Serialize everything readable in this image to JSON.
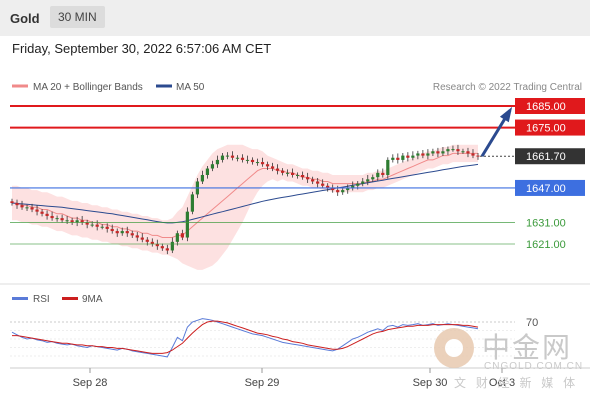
{
  "header": {
    "asset": "Gold",
    "timeframe": "30 MIN",
    "datetime": "Friday, September 30, 2022 6:57:06 AM CET"
  },
  "legend": {
    "ma20": "MA 20 + Bollinger Bands",
    "ma50": "MA 50",
    "copyright": "Research © 2022 Trading Central",
    "rsi": "RSI",
    "rsi_ma": "9MA"
  },
  "colors": {
    "resistance": "#e0191c",
    "support": "#3d6fe0",
    "support_minor": "#3b9a3b",
    "ma20": "#f08a8a",
    "ma50": "#2b4a8f",
    "bollinger": "#fde1e1",
    "candle_up": "#2e7d32",
    "candle_down": "#c62828",
    "current_price": "#333333",
    "arrow": "#2b4a8f",
    "rsi": "#5a7bd8",
    "rsi_ma": "#cc1f1f"
  },
  "watermark": {
    "brand": "中金网",
    "url": "CNGOLD.COM.CN",
    "sub": "文 财 经 新 媒 体"
  },
  "chart_data": {
    "type": "candlestick",
    "y_range": [
      1610,
      1690
    ],
    "x_ticks": [
      "Sep 28",
      "Sep 29",
      "Sep 30",
      "Oct 3"
    ],
    "levels": [
      {
        "label": "1685.00",
        "value": 1685,
        "kind": "resistance"
      },
      {
        "label": "1675.00",
        "value": 1675,
        "kind": "resistance"
      },
      {
        "label": "1661.70",
        "value": 1661.7,
        "kind": "current"
      },
      {
        "label": "1647.00",
        "value": 1647,
        "kind": "support"
      },
      {
        "label": "1631.00",
        "value": 1631,
        "kind": "support_minor"
      },
      {
        "label": "1621.00",
        "value": 1621,
        "kind": "support_minor"
      }
    ],
    "close": [
      1640,
      1639,
      1638,
      1638,
      1637,
      1636,
      1635,
      1634,
      1633,
      1633,
      1632,
      1632,
      1631,
      1632,
      1631,
      1630,
      1630,
      1629,
      1629,
      1628,
      1627,
      1626,
      1627,
      1626,
      1625,
      1624,
      1623,
      1622,
      1621,
      1620,
      1619,
      1618,
      1622,
      1626,
      1624,
      1636,
      1644,
      1650,
      1653,
      1656,
      1658,
      1660,
      1662,
      1662,
      1661,
      1661,
      1660,
      1660,
      1659,
      1659,
      1658,
      1657,
      1656,
      1655,
      1654,
      1654,
      1653,
      1653,
      1652,
      1651,
      1650,
      1649,
      1648,
      1647,
      1646,
      1645,
      1646,
      1647,
      1648,
      1649,
      1650,
      1651,
      1652,
      1654,
      1653,
      1660,
      1661,
      1660,
      1662,
      1661,
      1662,
      1663,
      1662,
      1663,
      1664,
      1663,
      1664,
      1665,
      1665,
      1664,
      1664,
      1663,
      1662,
      1661.7
    ],
    "ma20": [
      1640,
      1640,
      1639,
      1639,
      1638,
      1638,
      1637,
      1637,
      1636,
      1635,
      1635,
      1634,
      1633,
      1633,
      1632,
      1632,
      1631,
      1631,
      1630,
      1630,
      1629,
      1629,
      1628,
      1628,
      1627,
      1627,
      1626,
      1626,
      1625,
      1625,
      1624,
      1624,
      1624,
      1625,
      1625,
      1627,
      1629,
      1631,
      1633,
      1635,
      1637,
      1639,
      1641,
      1643,
      1645,
      1647,
      1649,
      1651,
      1653,
      1655,
      1656,
      1656,
      1656,
      1655,
      1655,
      1654,
      1654,
      1653,
      1652,
      1652,
      1651,
      1651,
      1650,
      1650,
      1649,
      1649,
      1649,
      1649,
      1649,
      1649,
      1649,
      1650,
      1650,
      1651,
      1651,
      1652,
      1653,
      1654,
      1655,
      1656,
      1657,
      1658,
      1659,
      1660,
      1660,
      1661,
      1662,
      1662,
      1663,
      1663,
      1663,
      1663,
      1663,
      1663
    ],
    "ma50": [
      1640,
      1639.8,
      1639.6,
      1639.4,
      1639.2,
      1639,
      1638.8,
      1638.6,
      1638.4,
      1638.2,
      1638,
      1637.7,
      1637.4,
      1637.1,
      1636.8,
      1636.5,
      1636.2,
      1635.9,
      1635.6,
      1635.3,
      1635,
      1634.6,
      1634.2,
      1633.8,
      1633.4,
      1633,
      1632.6,
      1632.2,
      1631.8,
      1631.4,
      1631,
      1630.8,
      1630.8,
      1631,
      1631.3,
      1631.8,
      1632.4,
      1633,
      1633.6,
      1634.2,
      1634.8,
      1635.4,
      1636,
      1636.6,
      1637.2,
      1637.8,
      1638.4,
      1639,
      1639.6,
      1640.2,
      1640.8,
      1641.3,
      1641.8,
      1642.2,
      1642.6,
      1643,
      1643.4,
      1643.8,
      1644.2,
      1644.6,
      1645,
      1645.4,
      1645.8,
      1646.2,
      1646.6,
      1647,
      1647.4,
      1647.8,
      1648.2,
      1648.6,
      1649,
      1649.4,
      1649.8,
      1650.2,
      1650.6,
      1651,
      1651.4,
      1651.8,
      1652.2,
      1652.6,
      1653,
      1653.4,
      1653.8,
      1654.2,
      1654.6,
      1655,
      1655.4,
      1655.8,
      1656.2,
      1656.6,
      1657,
      1657.3,
      1657.6,
      1657.9
    ],
    "band_width": [
      8,
      8,
      8,
      8,
      8,
      8,
      8,
      8,
      8,
      8,
      8,
      8,
      8,
      8,
      8,
      8,
      8,
      8,
      8,
      8,
      8,
      8,
      8,
      8,
      8,
      8,
      8,
      8,
      8,
      8,
      8,
      8,
      9,
      11,
      13,
      16,
      19,
      22,
      24,
      25,
      26,
      26,
      25,
      24,
      22,
      20,
      18,
      15,
      12,
      10,
      8,
      6,
      5,
      5,
      4,
      4,
      4,
      4,
      4,
      4,
      4,
      4,
      4,
      4,
      4,
      4,
      4,
      4,
      4,
      4,
      4,
      4,
      4,
      4,
      4,
      4,
      4,
      4,
      4,
      4,
      4,
      4,
      4,
      4,
      4,
      4,
      4,
      4,
      4,
      4,
      4,
      4,
      4,
      4
    ],
    "rsi": [
      58,
      55,
      52,
      50,
      51,
      49,
      48,
      46,
      47,
      45,
      44,
      43,
      44,
      42,
      41,
      40,
      42,
      41,
      40,
      39,
      38,
      37,
      39,
      38,
      36,
      35,
      34,
      33,
      32,
      31,
      30,
      29,
      40,
      52,
      48,
      64,
      70,
      72,
      74,
      73,
      72,
      70,
      68,
      66,
      64,
      62,
      60,
      58,
      56,
      55,
      54,
      52,
      50,
      48,
      46,
      45,
      44,
      43,
      42,
      41,
      40,
      39,
      38,
      37,
      36,
      38,
      42,
      46,
      50,
      52,
      55,
      58,
      60,
      62,
      60,
      65,
      66,
      64,
      67,
      66,
      67,
      68,
      66,
      67,
      68,
      66,
      67,
      68,
      67,
      66,
      65,
      64,
      63,
      62
    ],
    "rsi_ma": [
      54,
      54,
      53,
      52,
      51,
      50,
      49,
      48,
      47,
      46,
      45,
      45,
      44,
      43,
      43,
      42,
      42,
      41,
      41,
      40,
      40,
      39,
      39,
      38,
      37,
      36,
      35,
      34,
      33,
      33,
      33,
      34,
      37,
      41,
      45,
      51,
      57,
      62,
      67,
      70,
      71,
      71,
      70,
      69,
      67,
      65,
      63,
      61,
      59,
      57,
      56,
      55,
      53,
      52,
      50,
      49,
      47,
      46,
      45,
      43,
      42,
      41,
      40,
      39,
      38,
      38,
      39,
      41,
      44,
      47,
      50,
      53,
      56,
      58,
      59,
      61,
      62,
      63,
      64,
      65,
      65,
      66,
      66,
      66,
      67,
      67,
      67,
      67,
      67,
      67,
      66,
      66,
      65,
      64
    ],
    "rsi_level": 70
  }
}
